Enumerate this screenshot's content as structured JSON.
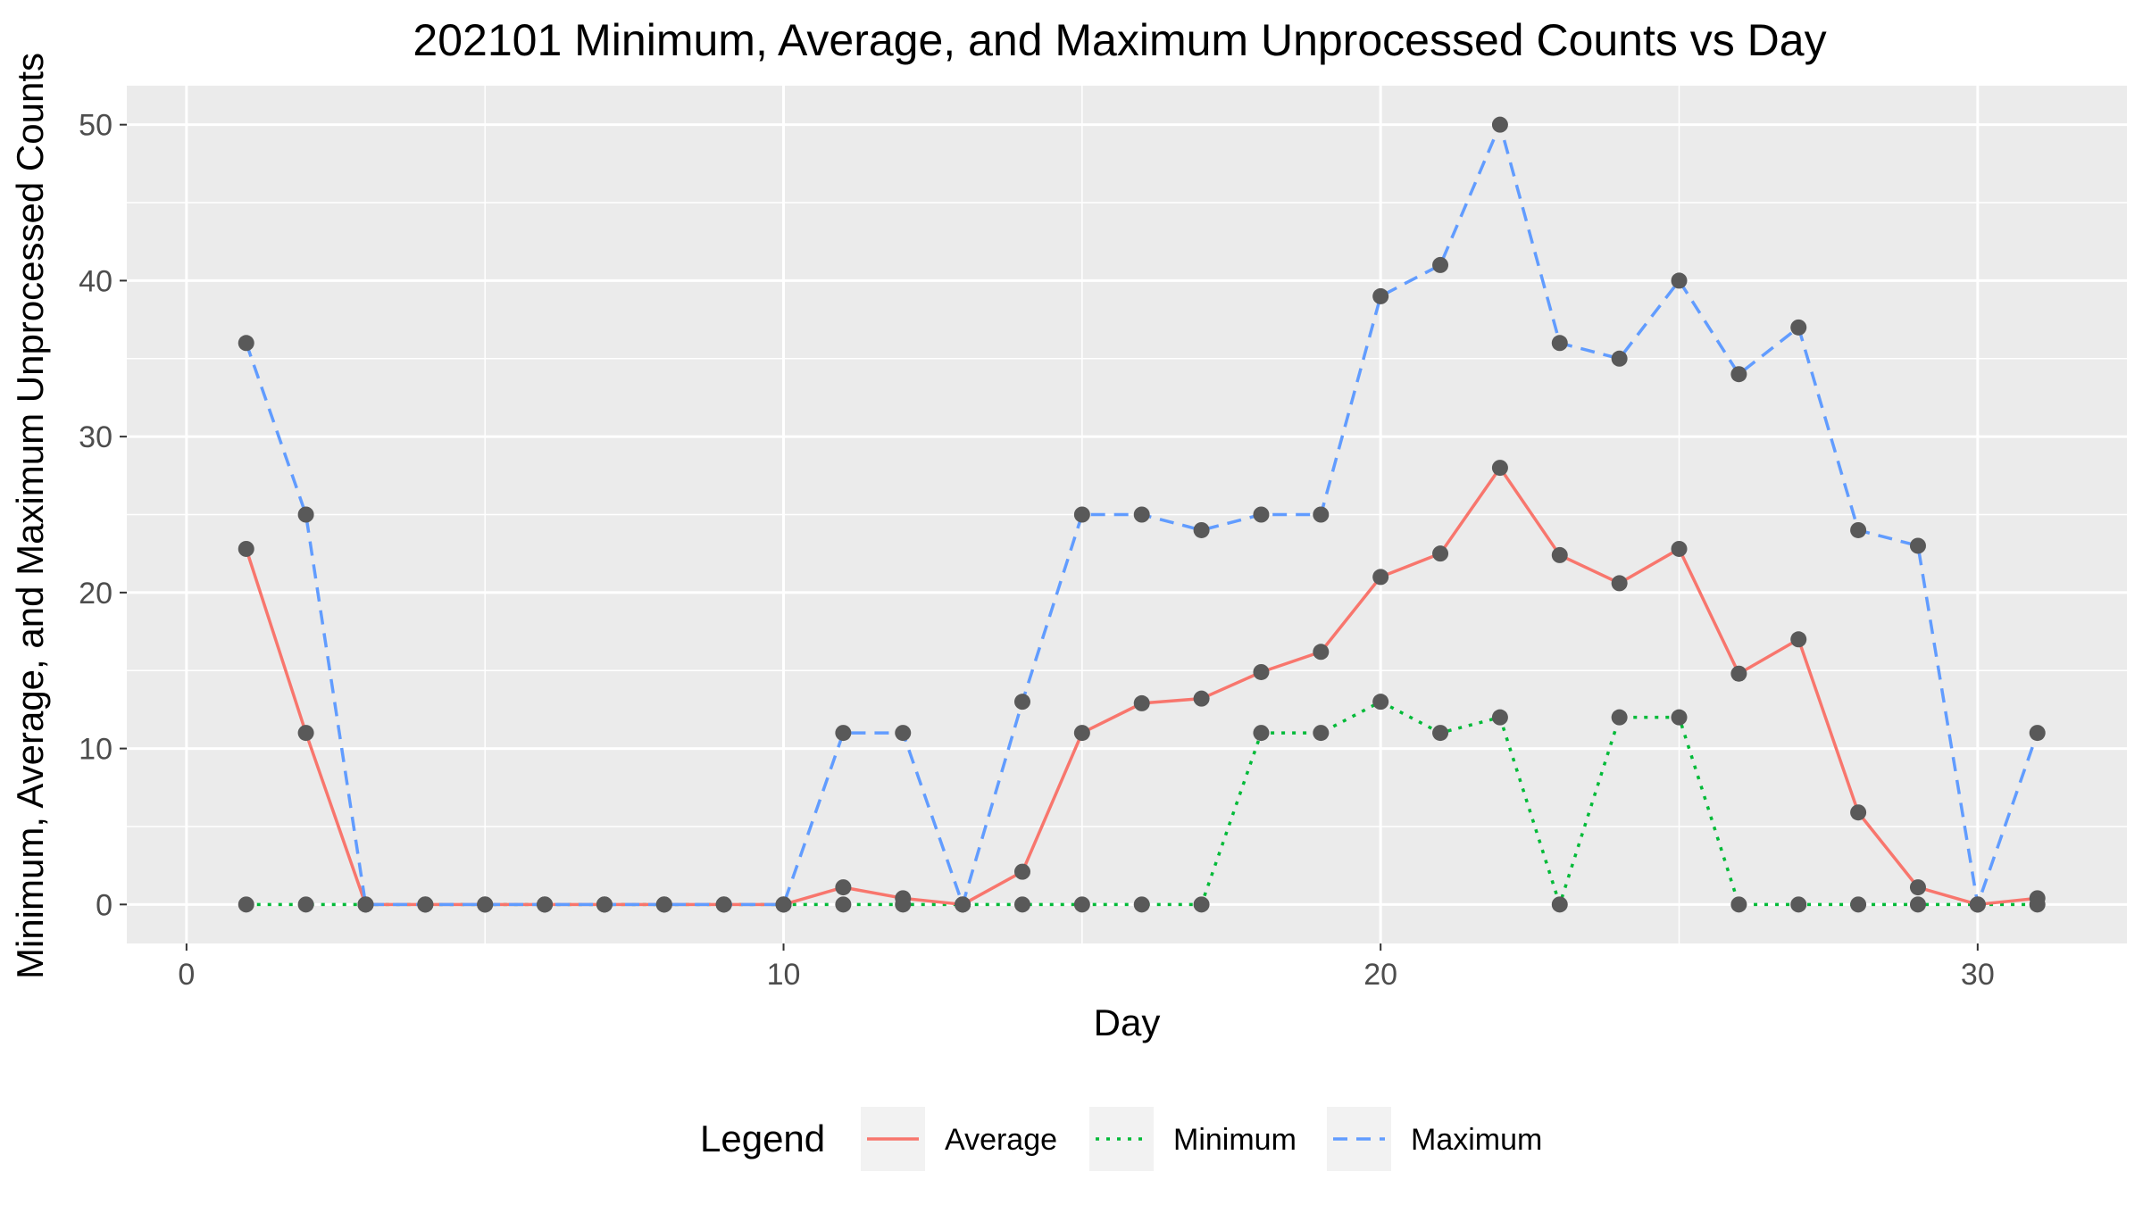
{
  "chart_data": {
    "type": "line",
    "title": "202101 Minimum, Average, and Maximum Unprocessed Counts vs Day",
    "xlabel": "Day",
    "ylabel": "Minimum, Average, and Maximum Unprocessed Counts",
    "xlim": [
      -1,
      32.5
    ],
    "ylim": [
      -2.5,
      52.5
    ],
    "x_ticks": [
      0,
      10,
      20,
      30
    ],
    "y_ticks": [
      0,
      10,
      20,
      30,
      40,
      50
    ],
    "grid": true,
    "legend": {
      "title": "Legend",
      "position": "bottom"
    },
    "x": [
      1,
      2,
      3,
      4,
      5,
      6,
      7,
      8,
      9,
      10,
      11,
      12,
      13,
      14,
      15,
      16,
      17,
      18,
      19,
      20,
      21,
      22,
      23,
      24,
      25,
      26,
      27,
      28,
      29,
      30,
      31
    ],
    "series": [
      {
        "name": "Average",
        "color": "#F8766D",
        "dash": "solid",
        "values": [
          22.8,
          11,
          0,
          0,
          0,
          0,
          0,
          0,
          0,
          0,
          1.1,
          0.4,
          0,
          2.1,
          11,
          12.9,
          13.2,
          14.9,
          16.2,
          21,
          22.5,
          28,
          22.4,
          20.6,
          22.8,
          14.8,
          17,
          5.9,
          1.1,
          0,
          0.4
        ]
      },
      {
        "name": "Minimum",
        "color": "#00BA38",
        "dash": "dotted",
        "values": [
          0,
          0,
          0,
          0,
          0,
          0,
          0,
          0,
          0,
          0,
          0,
          0,
          0,
          0,
          0,
          0,
          0,
          11,
          11,
          13,
          11,
          12,
          0,
          12,
          12,
          0,
          0,
          0,
          0,
          0,
          0
        ]
      },
      {
        "name": "Maximum",
        "color": "#619CFF",
        "dash": "dashed",
        "values": [
          36,
          25,
          0,
          0,
          0,
          0,
          0,
          0,
          0,
          0,
          11,
          11,
          0,
          13,
          25,
          25,
          24,
          25,
          25,
          39,
          41,
          50,
          36,
          35,
          40,
          34,
          37,
          24,
          23,
          0,
          11
        ]
      }
    ]
  }
}
